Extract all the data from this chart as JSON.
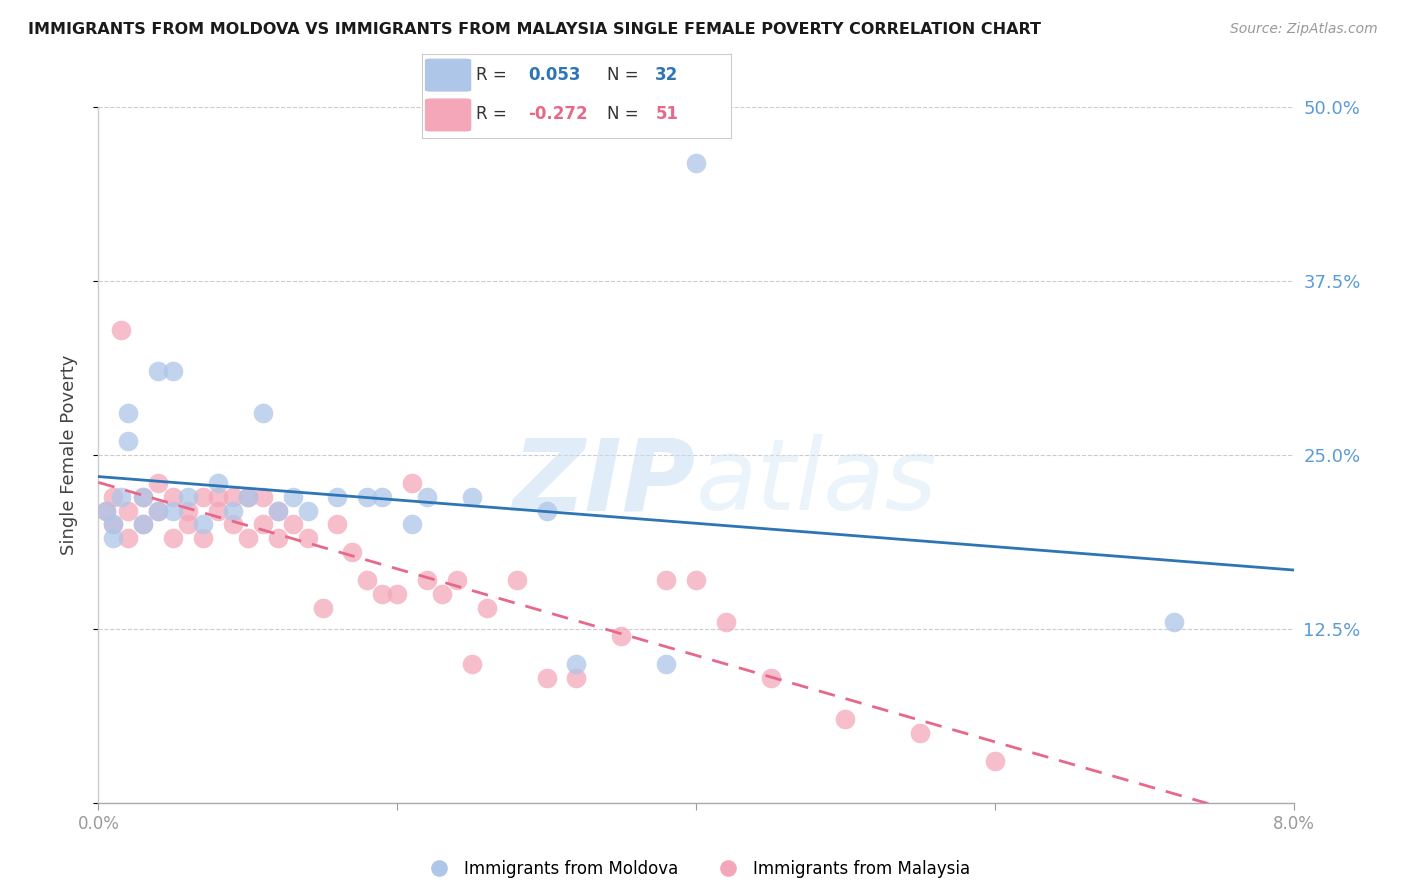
{
  "title": "IMMIGRANTS FROM MOLDOVA VS IMMIGRANTS FROM MALAYSIA SINGLE FEMALE POVERTY CORRELATION CHART",
  "source": "Source: ZipAtlas.com",
  "ylabel": "Single Female Poverty",
  "xlim": [
    0.0,
    0.08
  ],
  "ylim": [
    0.0,
    0.5
  ],
  "yticks": [
    0.0,
    0.125,
    0.25,
    0.375,
    0.5
  ],
  "ytick_labels": [
    "",
    "12.5%",
    "25.0%",
    "37.5%",
    "50.0%"
  ],
  "right_axis_color": "#5b9bd5",
  "moldova_color": "#aec6e8",
  "malaysia_color": "#f4a7b9",
  "moldova_line_color": "#2e75b6",
  "malaysia_line_color": "#e8688a",
  "watermark_zip": "ZIP",
  "watermark_atlas": "atlas",
  "moldova_R": 0.053,
  "moldova_N": 32,
  "malaysia_R": -0.272,
  "malaysia_N": 51,
  "moldova_scatter_x": [
    0.0005,
    0.001,
    0.001,
    0.0015,
    0.002,
    0.002,
    0.003,
    0.003,
    0.004,
    0.004,
    0.005,
    0.005,
    0.006,
    0.007,
    0.008,
    0.009,
    0.01,
    0.011,
    0.012,
    0.013,
    0.014,
    0.016,
    0.018,
    0.019,
    0.021,
    0.022,
    0.025,
    0.03,
    0.032,
    0.038,
    0.04,
    0.072
  ],
  "moldova_scatter_y": [
    0.21,
    0.2,
    0.19,
    0.22,
    0.26,
    0.28,
    0.2,
    0.22,
    0.21,
    0.31,
    0.21,
    0.31,
    0.22,
    0.2,
    0.23,
    0.21,
    0.22,
    0.28,
    0.21,
    0.22,
    0.21,
    0.22,
    0.22,
    0.22,
    0.2,
    0.22,
    0.22,
    0.21,
    0.1,
    0.1,
    0.46,
    0.13
  ],
  "malaysia_scatter_x": [
    0.0005,
    0.001,
    0.001,
    0.0015,
    0.002,
    0.002,
    0.003,
    0.003,
    0.004,
    0.004,
    0.005,
    0.005,
    0.006,
    0.006,
    0.007,
    0.007,
    0.008,
    0.008,
    0.009,
    0.009,
    0.01,
    0.01,
    0.011,
    0.011,
    0.012,
    0.012,
    0.013,
    0.014,
    0.015,
    0.016,
    0.017,
    0.018,
    0.019,
    0.02,
    0.021,
    0.022,
    0.023,
    0.024,
    0.025,
    0.026,
    0.028,
    0.03,
    0.032,
    0.035,
    0.038,
    0.04,
    0.042,
    0.045,
    0.05,
    0.055,
    0.06
  ],
  "malaysia_scatter_y": [
    0.21,
    0.22,
    0.2,
    0.34,
    0.21,
    0.19,
    0.22,
    0.2,
    0.21,
    0.23,
    0.22,
    0.19,
    0.21,
    0.2,
    0.22,
    0.19,
    0.22,
    0.21,
    0.22,
    0.2,
    0.22,
    0.19,
    0.22,
    0.2,
    0.19,
    0.21,
    0.2,
    0.19,
    0.14,
    0.2,
    0.18,
    0.16,
    0.15,
    0.15,
    0.23,
    0.16,
    0.15,
    0.16,
    0.1,
    0.14,
    0.16,
    0.09,
    0.09,
    0.12,
    0.16,
    0.16,
    0.13,
    0.09,
    0.06,
    0.05,
    0.03
  ],
  "background_color": "#ffffff",
  "grid_color": "#cccccc"
}
